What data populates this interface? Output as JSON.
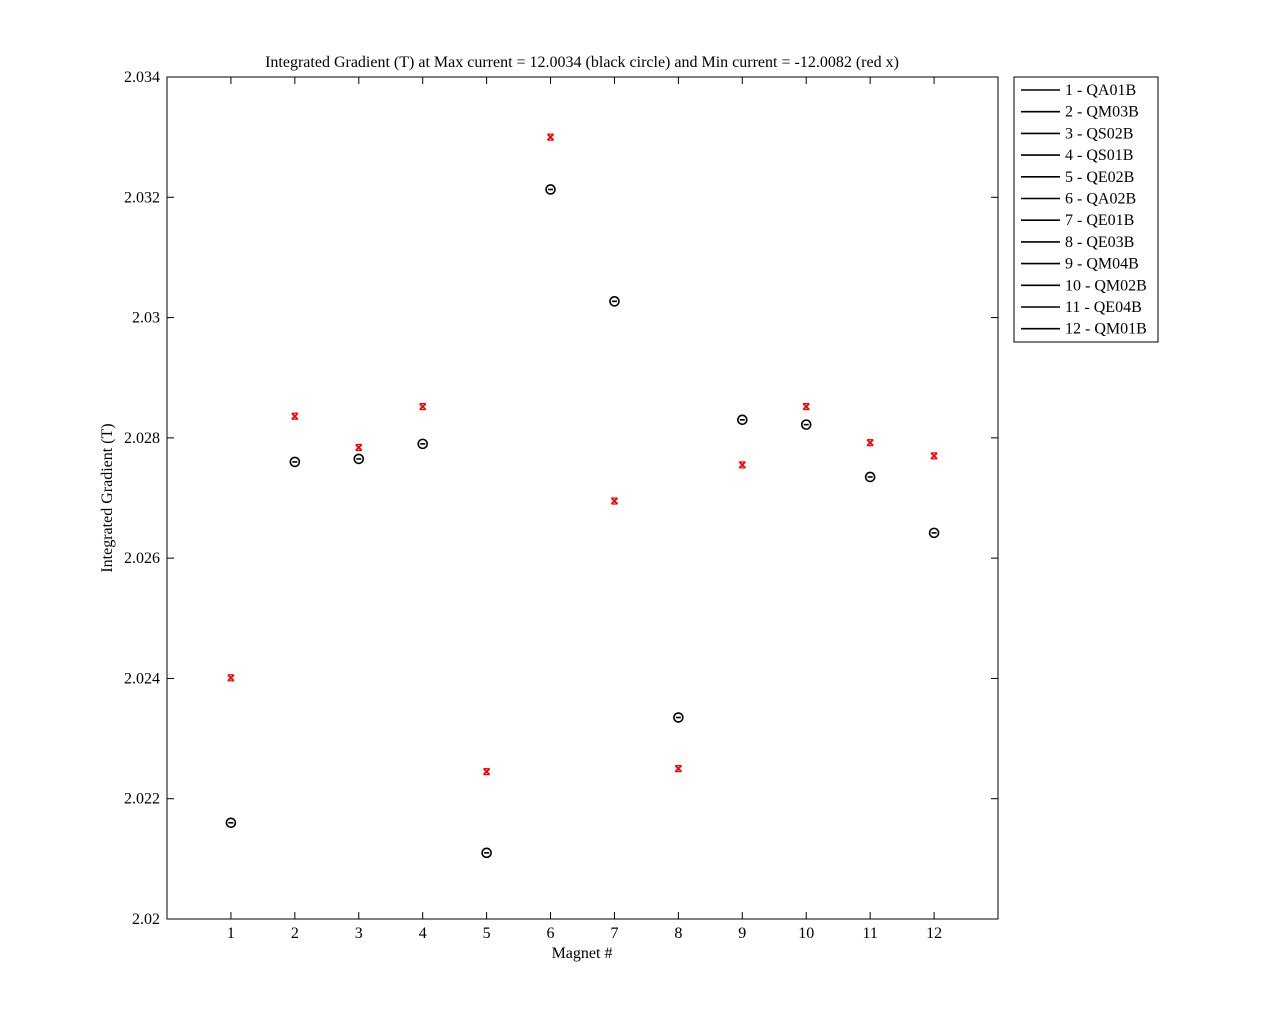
{
  "chart_data": {
    "type": "scatter",
    "title": "Integrated Gradient (T) at Max current = 12.0034 (black circle) and Min current = -12.0082 (red x)",
    "xlabel": "Magnet #",
    "ylabel": "Integrated Gradient (T)",
    "xlim": [
      0,
      13
    ],
    "ylim": [
      2.02,
      2.034
    ],
    "xticks": [
      "1",
      "2",
      "3",
      "4",
      "5",
      "6",
      "7",
      "8",
      "9",
      "10",
      "11",
      "12"
    ],
    "yticks": [
      "2.02",
      "2.022",
      "2.024",
      "2.026",
      "2.028",
      "2.03",
      "2.032",
      "2.034"
    ],
    "grid": false,
    "legend_position": "outside-top-right",
    "legend": [
      "1 - QA01B",
      "2 - QM03B",
      "3 - QS02B",
      "4 - QS01B",
      "5 - QE02B",
      "6 - QA02B",
      "7 - QE01B",
      "8 - QE03B",
      "9 - QM04B",
      "10 - QM02B",
      "11 - QE04B",
      "12 - QM01B"
    ],
    "legend_line_color": "#000000",
    "series": [
      {
        "marker": "circle",
        "color": "#000000",
        "x": [
          1,
          2,
          3,
          4,
          5,
          6,
          7,
          8,
          9,
          10,
          11,
          12
        ],
        "y": [
          2.0216,
          2.0276,
          2.02765,
          2.0279,
          2.0211,
          2.03213,
          2.03027,
          2.02335,
          2.0283,
          2.02822,
          2.02735,
          2.02642
        ]
      },
      {
        "marker": "x",
        "color": "#ff0000",
        "x": [
          1,
          2,
          3,
          4,
          5,
          6,
          7,
          8,
          9,
          10,
          11,
          12
        ],
        "y": [
          2.02401,
          2.02836,
          2.02784,
          2.02852,
          2.02245,
          2.033,
          2.02695,
          2.0225,
          2.02755,
          2.02852,
          2.02792,
          2.0277
        ]
      }
    ]
  }
}
